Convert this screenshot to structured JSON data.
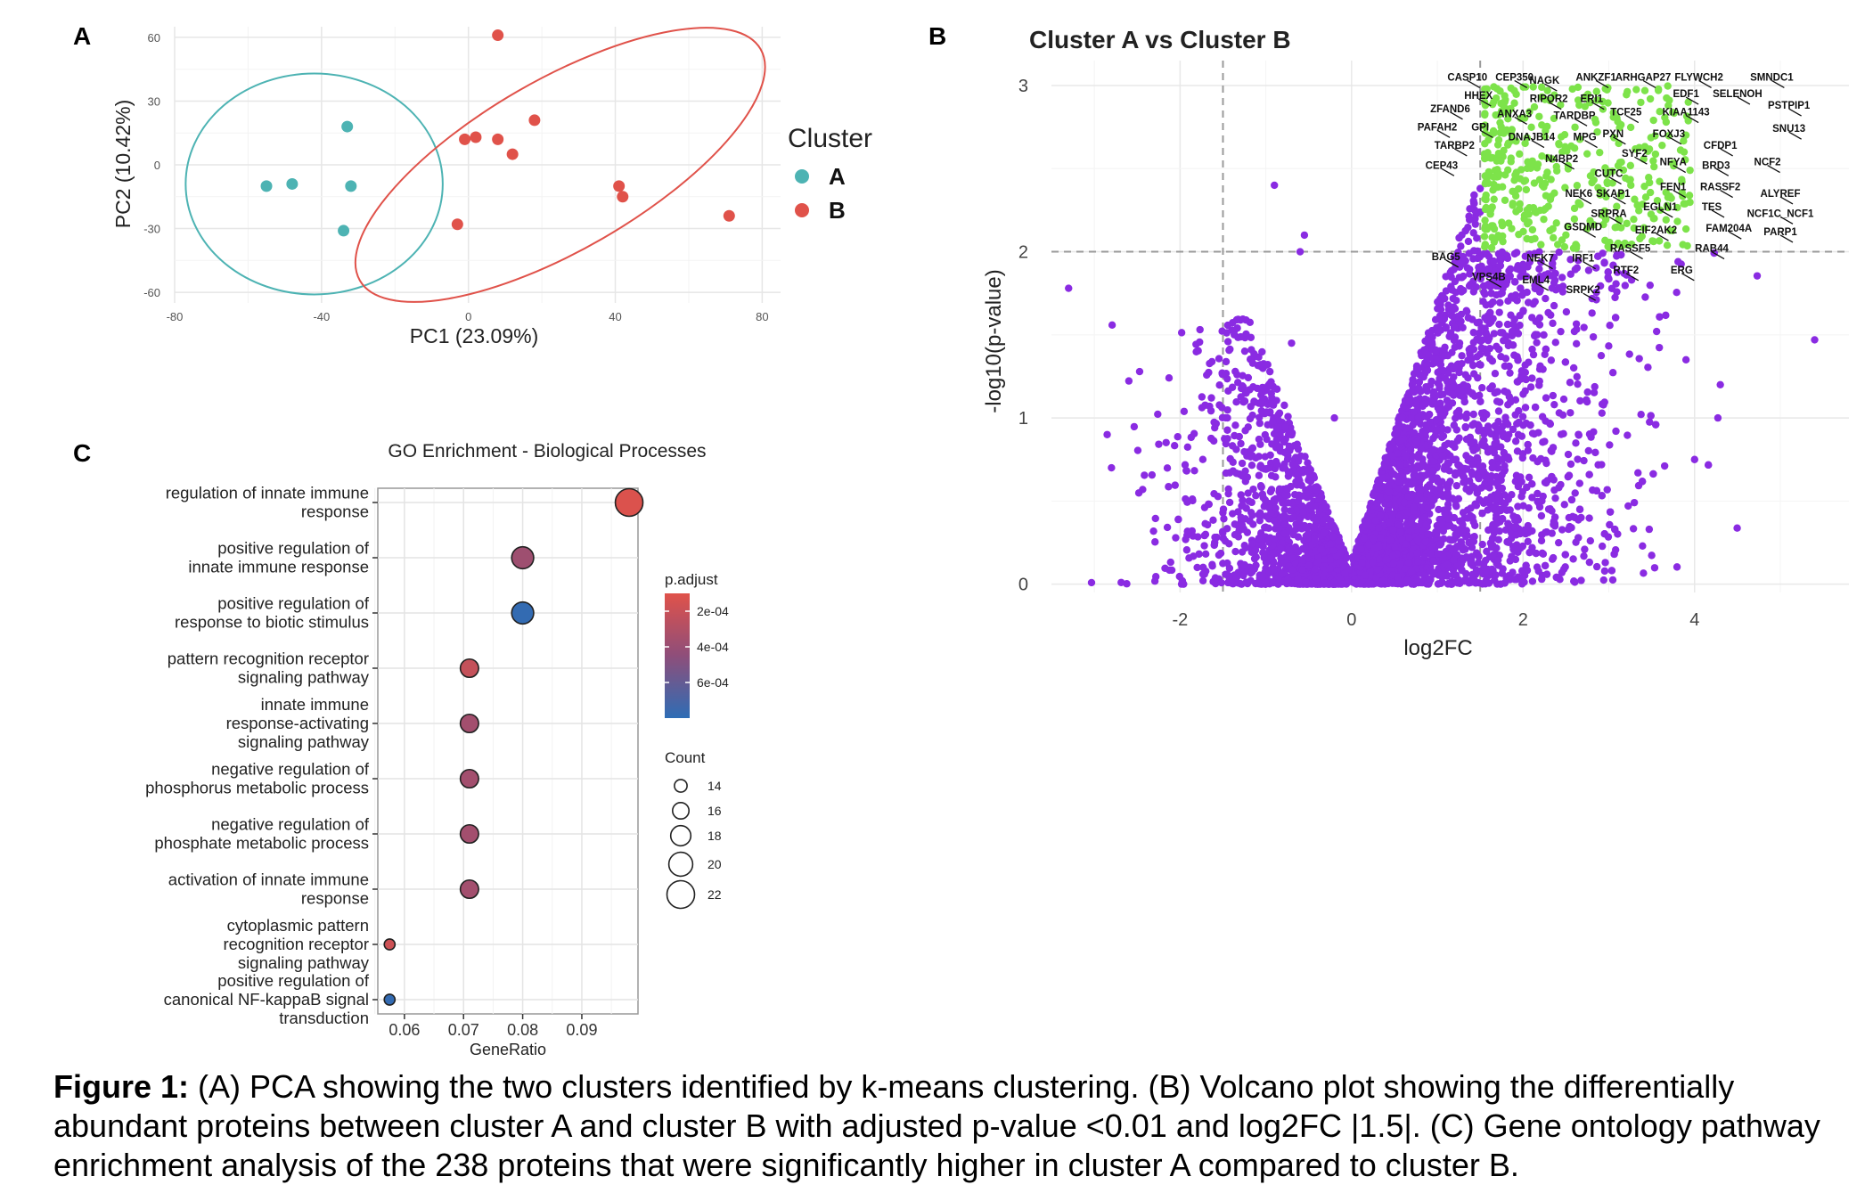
{
  "panels": {
    "A": {
      "letter": "A",
      "chart_data": {
        "type": "scatter",
        "title": "",
        "xlabel": "PC1 (23.09%)",
        "ylabel": "PC2 (10.42%)",
        "xlim": [
          -80,
          85
        ],
        "ylim": [
          -65,
          65
        ],
        "xticks": [
          "-80",
          "-40",
          "0",
          "40",
          "80"
        ],
        "xtick_values": [
          -80,
          -40,
          0,
          40,
          80
        ],
        "yticks": [
          "60",
          "30",
          "0",
          "-30",
          "-60"
        ],
        "ytick_values": [
          60,
          30,
          0,
          -30,
          -60
        ],
        "legend_title": "Cluster",
        "legend_position": "right",
        "series": [
          {
            "name": "A",
            "color": "#4db3b3",
            "x": [
              -55,
              -48,
              -33,
              -32,
              -34
            ],
            "y": [
              -10,
              -9,
              18,
              -10,
              -31
            ]
          },
          {
            "name": "B",
            "color": "#e0524a",
            "x": [
              8,
              -1,
              2,
              8,
              12,
              18,
              -3,
              41,
              42,
              71
            ],
            "y": [
              61,
              12,
              13,
              12,
              5,
              21,
              -28,
              -10,
              -15,
              -24
            ]
          }
        ],
        "ellipses": [
          {
            "series": "A",
            "color": "#4db3b3",
            "cx": -42,
            "cy": -9,
            "rx": 35,
            "ry": 52,
            "angle": 0
          },
          {
            "series": "B",
            "color": "#e0524a",
            "cx": 25,
            "cy": 0,
            "rx": 63,
            "ry": 40,
            "angle": -30
          }
        ]
      }
    },
    "B": {
      "letter": "B",
      "chart_data": {
        "type": "scatter",
        "title": "Cluster A vs Cluster B",
        "xlabel": "log2FC",
        "ylabel": "-log10(p-value)",
        "xlim": [
          -3.5,
          5.8
        ],
        "ylim": [
          -0.05,
          3.15
        ],
        "xticks": [
          "-2",
          "0",
          "2",
          "4"
        ],
        "xtick_values": [
          -2,
          0,
          2,
          4
        ],
        "yticks": [
          "0",
          "1",
          "2",
          "3"
        ],
        "ytick_values": [
          0,
          1,
          2,
          3
        ],
        "thresholds": {
          "x": [
            -1.5,
            1.5
          ],
          "y": 2
        },
        "colors": {
          "not_significant": "#8a2be2",
          "significant": "#7de34a"
        },
        "outliers": [
          {
            "x": -3.3,
            "y": 1.78
          },
          {
            "x": -0.9,
            "y": 2.4
          },
          {
            "x": -0.55,
            "y": 2.1
          },
          {
            "x": -0.6,
            "y": 2.0
          },
          {
            "x": 5.4,
            "y": 1.47
          },
          {
            "x": -2.85,
            "y": 0.9
          },
          {
            "x": -2.8,
            "y": 0.7
          },
          {
            "x": 4.0,
            "y": 0.75
          },
          {
            "x": 4.3,
            "y": 1.2
          },
          {
            "x": 3.9,
            "y": 1.35
          },
          {
            "x": -0.7,
            "y": 1.45
          },
          {
            "x": -0.2,
            "y": 1.0
          }
        ],
        "gene_labels": [
          {
            "text": "CASP10",
            "x": 1.35,
            "y": 3.03
          },
          {
            "text": "CEP350",
            "x": 1.9,
            "y": 3.03
          },
          {
            "text": "NAGK",
            "x": 2.25,
            "y": 3.01
          },
          {
            "text": "ANKZF1",
            "x": 2.85,
            "y": 3.03
          },
          {
            "text": "ARHGAP27",
            "x": 3.4,
            "y": 3.03
          },
          {
            "text": "FLYWCH2",
            "x": 4.05,
            "y": 3.03
          },
          {
            "text": "SMNDC1",
            "x": 4.9,
            "y": 3.03
          },
          {
            "text": "HHEX",
            "x": 1.48,
            "y": 2.92
          },
          {
            "text": "RIPOR2",
            "x": 2.3,
            "y": 2.9
          },
          {
            "text": "ERI1",
            "x": 2.8,
            "y": 2.9
          },
          {
            "text": "EDF1",
            "x": 3.9,
            "y": 2.93
          },
          {
            "text": "SELENOH",
            "x": 4.5,
            "y": 2.93
          },
          {
            "text": "PSTPIP1",
            "x": 5.1,
            "y": 2.86
          },
          {
            "text": "ZFAND6",
            "x": 1.15,
            "y": 2.84
          },
          {
            "text": "ANXA3",
            "x": 1.9,
            "y": 2.81
          },
          {
            "text": "TARDBP",
            "x": 2.6,
            "y": 2.8
          },
          {
            "text": "TCF25",
            "x": 3.2,
            "y": 2.82
          },
          {
            "text": "KIAA1143",
            "x": 3.9,
            "y": 2.82
          },
          {
            "text": "SNU13",
            "x": 5.1,
            "y": 2.72
          },
          {
            "text": "PAFAH2",
            "x": 1.0,
            "y": 2.73
          },
          {
            "text": "GPI",
            "x": 1.5,
            "y": 2.73
          },
          {
            "text": "DNAJB14",
            "x": 2.1,
            "y": 2.67
          },
          {
            "text": "MPG",
            "x": 2.72,
            "y": 2.67
          },
          {
            "text": "PXN",
            "x": 3.05,
            "y": 2.69
          },
          {
            "text": "FOXJ3",
            "x": 3.7,
            "y": 2.69
          },
          {
            "text": "CFDP1",
            "x": 4.3,
            "y": 2.62
          },
          {
            "text": "TARBP2",
            "x": 1.2,
            "y": 2.62
          },
          {
            "text": "SYF2",
            "x": 3.3,
            "y": 2.57
          },
          {
            "text": "N4BP2",
            "x": 2.45,
            "y": 2.54
          },
          {
            "text": "NFYA",
            "x": 3.75,
            "y": 2.52
          },
          {
            "text": "BRD3",
            "x": 4.25,
            "y": 2.5
          },
          {
            "text": "NCF2",
            "x": 4.85,
            "y": 2.52
          },
          {
            "text": "CEP43",
            "x": 1.05,
            "y": 2.5
          },
          {
            "text": "CUTC",
            "x": 3.0,
            "y": 2.45
          },
          {
            "text": "FEN1",
            "x": 3.75,
            "y": 2.37
          },
          {
            "text": "RASSF2",
            "x": 4.3,
            "y": 2.37
          },
          {
            "text": "ALYREF",
            "x": 5.0,
            "y": 2.33
          },
          {
            "text": "NEK6",
            "x": 2.65,
            "y": 2.33
          },
          {
            "text": "SKAP1",
            "x": 3.05,
            "y": 2.33
          },
          {
            "text": "EGLN1",
            "x": 3.6,
            "y": 2.25
          },
          {
            "text": "TES",
            "x": 4.2,
            "y": 2.25
          },
          {
            "text": "SRPRA",
            "x": 3.0,
            "y": 2.21
          },
          {
            "text": "NCF1C_NCF1",
            "x": 5.0,
            "y": 2.21
          },
          {
            "text": "GSDMD",
            "x": 2.7,
            "y": 2.13
          },
          {
            "text": "EIF2AK2",
            "x": 3.55,
            "y": 2.11
          },
          {
            "text": "FAM204A",
            "x": 4.4,
            "y": 2.12
          },
          {
            "text": "PARP1",
            "x": 5.0,
            "y": 2.1
          },
          {
            "text": "RASSF5",
            "x": 3.25,
            "y": 2.0
          },
          {
            "text": "RAB44",
            "x": 4.2,
            "y": 2.0
          },
          {
            "text": "BAG5",
            "x": 1.1,
            "y": 1.95
          },
          {
            "text": "NEK7",
            "x": 2.2,
            "y": 1.94
          },
          {
            "text": "IRF1",
            "x": 2.7,
            "y": 1.94
          },
          {
            "text": "RTF2",
            "x": 3.2,
            "y": 1.87
          },
          {
            "text": "ERG",
            "x": 3.85,
            "y": 1.87
          },
          {
            "text": "VPS4B",
            "x": 1.6,
            "y": 1.83
          },
          {
            "text": "EML4",
            "x": 2.15,
            "y": 1.81
          },
          {
            "text": "SRPK2",
            "x": 2.7,
            "y": 1.75
          }
        ]
      }
    },
    "C": {
      "letter": "C",
      "chart_data": {
        "type": "scatter",
        "title": "GO Enrichment - Biological Processes",
        "xlabel": "GeneRatio",
        "ylabel": "",
        "xlim": [
          0.0555,
          0.0995
        ],
        "xticks": [
          "0.06",
          "0.07",
          "0.08",
          "0.09"
        ],
        "xtick_values": [
          0.06,
          0.07,
          0.08,
          0.09
        ],
        "categories": [
          [
            "regulation of innate immune",
            "response"
          ],
          [
            "positive regulation of",
            "innate immune response"
          ],
          [
            "positive regulation of",
            "response to biotic stimulus"
          ],
          [
            "pattern recognition receptor",
            "signaling pathway"
          ],
          [
            "innate immune",
            "response-activating",
            "signaling pathway"
          ],
          [
            "negative regulation of",
            "phosphorus metabolic process"
          ],
          [
            "negative regulation of",
            "phosphate metabolic process"
          ],
          [
            "activation of innate immune",
            "response"
          ],
          [
            "cytoplasmic pattern",
            "recognition receptor",
            "signaling pathway"
          ],
          [
            "positive regulation of",
            "canonical NF-kappaB signal",
            "transduction"
          ]
        ],
        "gene_ratio": [
          0.098,
          0.08,
          0.08,
          0.071,
          0.071,
          0.071,
          0.071,
          0.071,
          0.0575,
          0.0575
        ],
        "count": [
          22,
          19,
          19,
          17,
          17,
          17,
          17,
          17,
          13,
          13
        ],
        "p_adjust": [
          0.00012,
          0.00038,
          0.00078,
          0.00022,
          0.00036,
          0.00036,
          0.00036,
          0.00036,
          0.00018,
          0.00078
        ],
        "color_legend": {
          "title": "p.adjust",
          "labels": [
            "2e-04",
            "4e-04",
            "6e-04"
          ],
          "values": [
            0.0002,
            0.0004,
            0.0006
          ],
          "range": [
            0.0001,
            0.0008
          ],
          "colors": {
            "low": "#e0524a",
            "mid": "#8e4e7a",
            "high": "#2e6db5"
          }
        },
        "size_legend": {
          "title": "Count",
          "labels": [
            "14",
            "16",
            "18",
            "20",
            "22"
          ],
          "values": [
            14,
            16,
            18,
            20,
            22
          ]
        }
      }
    }
  },
  "caption": {
    "label": "Figure 1:",
    "text": " (A) PCA showing the two clusters identified by k-means clustering. (B) Volcano plot showing the differentially abundant proteins between cluster A and cluster B with adjusted p-value <0.01 and log2FC |1.5|. (C) Gene ontology pathway enrichment analysis of the 238 proteins that were significantly higher in cluster A compared to cluster B."
  }
}
